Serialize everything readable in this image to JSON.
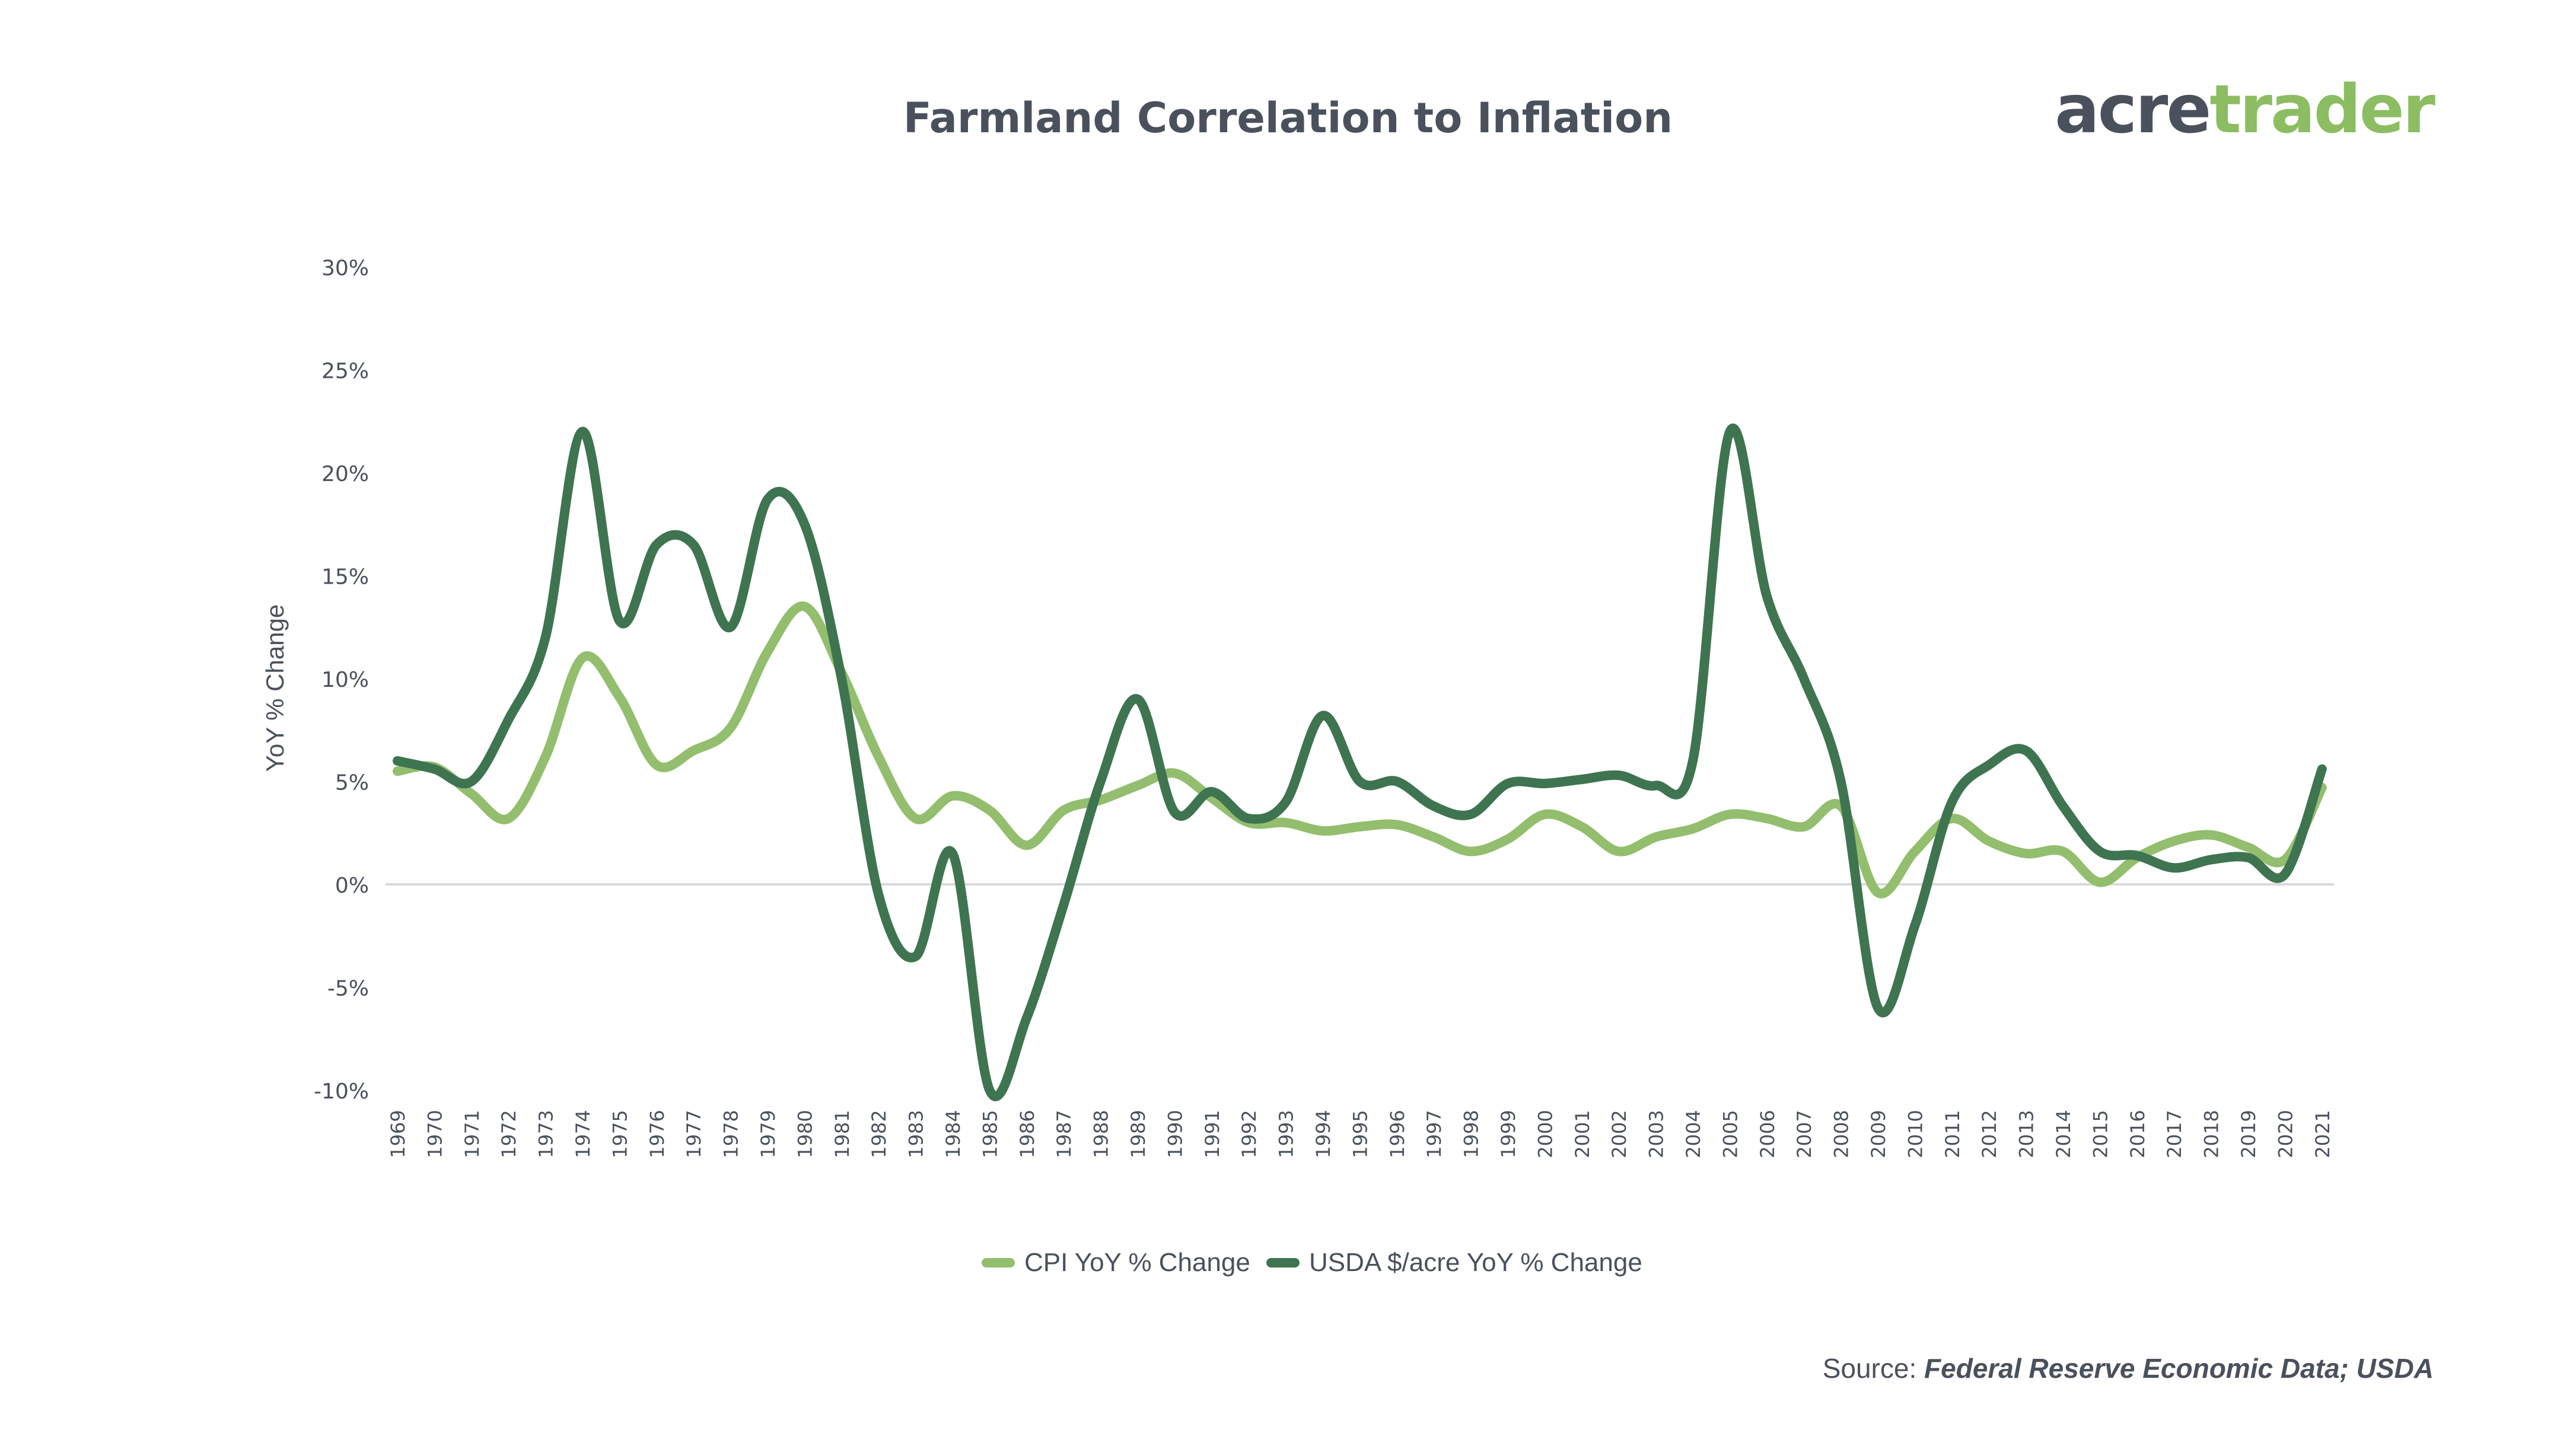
{
  "logo": {
    "part1": "acre",
    "part2": "trader"
  },
  "source": {
    "prefix": "Source: ",
    "text": "Federal Reserve Economic Data; USDA"
  },
  "colors": {
    "cpi": "#93be6e",
    "usda": "#3f7451",
    "text": "#4a515c",
    "zero_line": "#d9d9d9"
  },
  "chart_data": {
    "type": "line",
    "title": "Farmland Correlation to Inflation",
    "ylabel": "YoY % Change",
    "xlabel": "",
    "ylim": [
      -10,
      30
    ],
    "yticks": [
      30,
      25,
      20,
      15,
      10,
      5,
      0,
      -5,
      -10
    ],
    "ytick_labels": [
      "30%",
      "25%",
      "20%",
      "15%",
      "10%",
      "5%",
      "0%",
      "-5%",
      "-10%"
    ],
    "x": [
      "1969",
      "1970",
      "1971",
      "1972",
      "1973",
      "1974",
      "1975",
      "1976",
      "1977",
      "1978",
      "1979",
      "1980",
      "1981",
      "1982",
      "1983",
      "1984",
      "1985",
      "1986",
      "1987",
      "1988",
      "1989",
      "1990",
      "1991",
      "1992",
      "1993",
      "1994",
      "1995",
      "1996",
      "1997",
      "1998",
      "1999",
      "2000",
      "2001",
      "2002",
      "2003",
      "2004",
      "2005",
      "2006",
      "2007",
      "2008",
      "2009",
      "2010",
      "2011",
      "2012",
      "2013",
      "2014",
      "2015",
      "2016",
      "2017",
      "2018",
      "2019",
      "2020",
      "2021"
    ],
    "legend_position": "bottom",
    "grid": false,
    "series": [
      {
        "name": "CPI YoY % Change",
        "values": [
          5.5,
          5.7,
          4.4,
          3.2,
          6.2,
          11.0,
          9.1,
          5.8,
          6.5,
          7.6,
          11.3,
          13.5,
          10.3,
          6.2,
          3.2,
          4.3,
          3.6,
          1.9,
          3.6,
          4.1,
          4.8,
          5.4,
          4.2,
          3.0,
          3.0,
          2.6,
          2.8,
          2.9,
          2.3,
          1.6,
          2.2,
          3.4,
          2.8,
          1.6,
          2.3,
          2.7,
          3.4,
          3.2,
          2.8,
          3.8,
          -0.4,
          1.6,
          3.2,
          2.1,
          1.5,
          1.6,
          0.1,
          1.3,
          2.1,
          2.4,
          1.8,
          1.2,
          4.7
        ]
      },
      {
        "name": "USDA $/acre YoY % Change",
        "values": [
          6.0,
          5.6,
          5.0,
          8.0,
          12.0,
          22.0,
          12.8,
          16.5,
          16.5,
          12.5,
          18.7,
          17.5,
          10.0,
          -0.5,
          -3.5,
          1.5,
          -10.0,
          -6.5,
          -1.0,
          5.0,
          9.0,
          3.5,
          4.5,
          3.2,
          4.0,
          8.2,
          5.0,
          5.0,
          3.8,
          3.4,
          4.9,
          4.9,
          5.1,
          5.3,
          4.8,
          6.0,
          22.0,
          14.0,
          10.0,
          5.0,
          -6.0,
          -2.0,
          4.0,
          5.8,
          6.5,
          3.8,
          1.6,
          1.4,
          0.8,
          1.2,
          1.3,
          0.5,
          5.6
        ]
      }
    ]
  }
}
